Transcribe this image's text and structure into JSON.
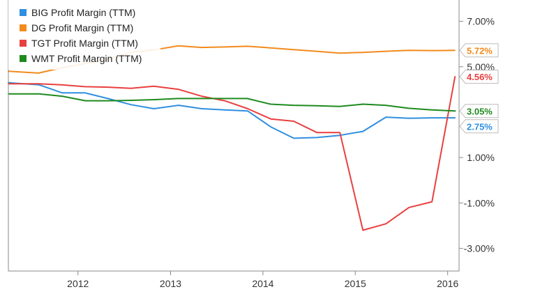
{
  "chart_data": {
    "type": "line",
    "title": "",
    "xlabel": "",
    "ylabel": "",
    "x_ticks": [
      "2012",
      "2013",
      "2014",
      "2015",
      "2016"
    ],
    "y_ticks": [
      "7.00%",
      "5.00%",
      "1.00%",
      "-1.00%",
      "-3.00%"
    ],
    "ylim": [
      -4.0,
      8.0
    ],
    "xlim": [
      "2011-04-01",
      "2016-02-15"
    ],
    "grid": false,
    "legend_position": "top-left",
    "series": [
      {
        "name": "BIG Profit Margin (TTM)",
        "color": "#2f8fe0",
        "end_label": "2.75%",
        "points": [
          [
            "2011-04-01",
            4.3
          ],
          [
            "2011-05-01",
            4.27
          ],
          [
            "2011-08-01",
            4.2
          ],
          [
            "2011-10-30",
            3.85
          ],
          [
            "2012-01-28",
            3.85
          ],
          [
            "2012-04-28",
            3.6
          ],
          [
            "2012-07-28",
            3.33
          ],
          [
            "2012-10-27",
            3.15
          ],
          [
            "2013-02-02",
            3.3
          ],
          [
            "2013-05-04",
            3.15
          ],
          [
            "2013-08-03",
            3.1
          ],
          [
            "2013-11-02",
            3.05
          ],
          [
            "2014-02-01",
            2.35
          ],
          [
            "2014-05-03",
            1.85
          ],
          [
            "2014-08-02",
            1.88
          ],
          [
            "2014-11-01",
            1.98
          ],
          [
            "2015-01-31",
            2.15
          ],
          [
            "2015-05-02",
            2.78
          ],
          [
            "2015-08-01",
            2.73
          ],
          [
            "2015-10-31",
            2.75
          ],
          [
            "2016-01-30",
            2.75
          ]
        ]
      },
      {
        "name": "DG Profit Margin (TTM)",
        "color": "#f28a1c",
        "end_label": "5.72%",
        "points": [
          [
            "2011-04-01",
            4.8
          ],
          [
            "2011-07-29",
            4.72
          ],
          [
            "2011-10-28",
            4.95
          ],
          [
            "2012-02-03",
            5.15
          ],
          [
            "2012-05-04",
            5.35
          ],
          [
            "2012-08-03",
            5.65
          ],
          [
            "2012-11-02",
            5.75
          ],
          [
            "2013-02-01",
            5.92
          ],
          [
            "2013-05-03",
            5.85
          ],
          [
            "2013-08-02",
            5.87
          ],
          [
            "2013-11-01",
            5.9
          ],
          [
            "2014-01-31",
            5.83
          ],
          [
            "2014-05-02",
            5.75
          ],
          [
            "2014-08-01",
            5.68
          ],
          [
            "2014-10-31",
            5.6
          ],
          [
            "2015-01-30",
            5.63
          ],
          [
            "2015-05-01",
            5.68
          ],
          [
            "2015-07-31",
            5.72
          ],
          [
            "2015-10-30",
            5.71
          ],
          [
            "2016-01-29",
            5.72
          ]
        ]
      },
      {
        "name": "TGT Profit Margin (TTM)",
        "color": "#e8403f",
        "end_label": "4.56%",
        "points": [
          [
            "2011-04-01",
            4.25
          ],
          [
            "2011-04-30",
            4.25
          ],
          [
            "2011-07-30",
            4.25
          ],
          [
            "2011-10-29",
            4.2
          ],
          [
            "2012-01-28",
            4.12
          ],
          [
            "2012-04-28",
            4.1
          ],
          [
            "2012-07-28",
            4.05
          ],
          [
            "2012-10-27",
            4.14
          ],
          [
            "2013-02-02",
            4.0
          ],
          [
            "2013-05-04",
            3.7
          ],
          [
            "2013-08-03",
            3.5
          ],
          [
            "2013-11-02",
            3.15
          ],
          [
            "2014-02-01",
            2.7
          ],
          [
            "2014-05-03",
            2.6
          ],
          [
            "2014-08-02",
            2.1
          ],
          [
            "2014-11-01",
            2.1
          ],
          [
            "2015-01-31",
            -2.2
          ],
          [
            "2015-05-02",
            -1.92
          ],
          [
            "2015-08-01",
            -1.2
          ],
          [
            "2015-10-31",
            -0.95
          ],
          [
            "2016-01-30",
            4.56
          ]
        ]
      },
      {
        "name": "WMT Profit Margin (TTM)",
        "color": "#1e8a1e",
        "end_label": "3.05%",
        "points": [
          [
            "2011-04-01",
            3.8
          ],
          [
            "2011-04-30",
            3.8
          ],
          [
            "2011-07-31",
            3.8
          ],
          [
            "2011-10-31",
            3.7
          ],
          [
            "2012-01-31",
            3.5
          ],
          [
            "2012-04-30",
            3.5
          ],
          [
            "2012-07-31",
            3.52
          ],
          [
            "2012-10-31",
            3.55
          ],
          [
            "2013-01-31",
            3.6
          ],
          [
            "2013-04-30",
            3.6
          ],
          [
            "2013-07-31",
            3.6
          ],
          [
            "2013-10-31",
            3.6
          ],
          [
            "2014-01-31",
            3.35
          ],
          [
            "2014-04-30",
            3.3
          ],
          [
            "2014-07-31",
            3.28
          ],
          [
            "2014-10-31",
            3.25
          ],
          [
            "2015-01-31",
            3.35
          ],
          [
            "2015-04-30",
            3.3
          ],
          [
            "2015-07-31",
            3.17
          ],
          [
            "2015-10-31",
            3.1
          ],
          [
            "2016-01-31",
            3.05
          ]
        ]
      }
    ]
  }
}
